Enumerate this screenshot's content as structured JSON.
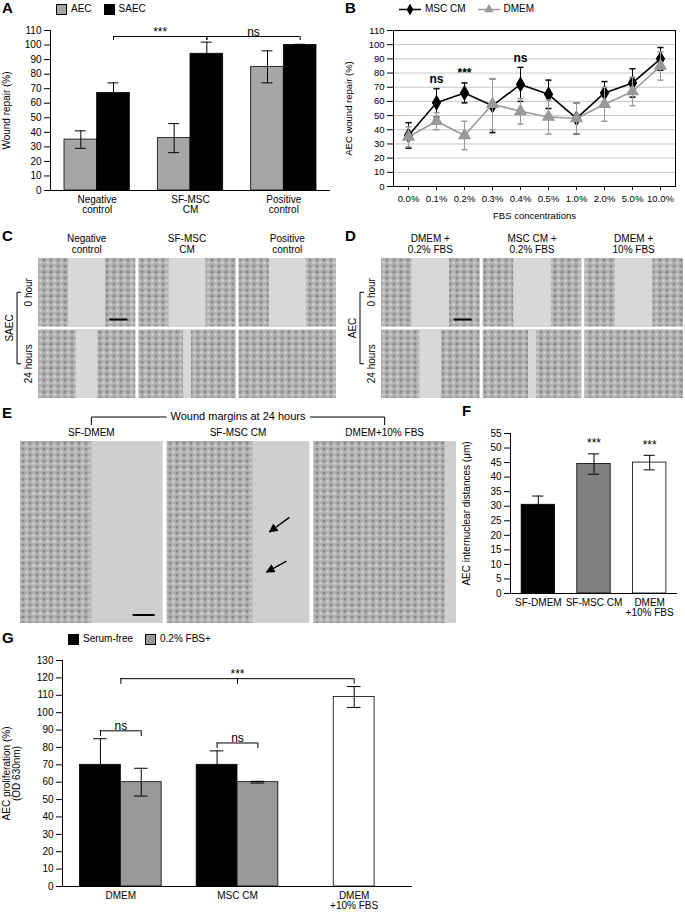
{
  "chart_data": [
    {
      "panel": "A",
      "type": "bar",
      "ylabel": "Wound repair (%)",
      "categories": [
        "Negative\ncontrol",
        "SF-MSC\nCM",
        "Positive\ncontrol"
      ],
      "series": [
        {
          "name": "AEC",
          "color": "#a6a6a6",
          "values": [
            35,
            36,
            85
          ],
          "errors": [
            6,
            10,
            11
          ]
        },
        {
          "name": "SAEC",
          "color": "#000000",
          "values": [
            67,
            94,
            100
          ],
          "errors": [
            7,
            8,
            0.5
          ]
        }
      ],
      "ylim": [
        0,
        110
      ],
      "yticks": [
        0,
        10,
        20,
        30,
        40,
        50,
        60,
        70,
        80,
        90,
        100,
        110
      ],
      "legend": "top-left",
      "annotations": [
        {
          "text": "***",
          "series": "SAEC",
          "categories": [
            "Negative\ncontrol",
            "SF-MSC\nCM"
          ]
        },
        {
          "text": "ns",
          "series": "SAEC",
          "categories": [
            "SF-MSC\nCM",
            "Positive\ncontrol"
          ]
        }
      ]
    },
    {
      "panel": "B",
      "type": "line",
      "xlabel": "FBS concentrations",
      "ylabel": "AEC wound repair (%)",
      "categories": [
        "0.0%",
        "0.1%",
        "0.2%",
        "0.3%",
        "0.4%",
        "0.5%",
        "1.0%",
        "2.0%",
        "5.0%",
        "10.0%"
      ],
      "series": [
        {
          "name": "MSC CM",
          "color": "#000000",
          "marker": "diamond",
          "values": [
            36,
            59,
            66,
            57,
            72,
            65,
            48,
            66,
            73,
            90
          ],
          "errors": [
            9,
            10,
            7,
            19,
            12,
            10,
            11,
            8,
            10,
            8
          ]
        },
        {
          "name": "DMEM",
          "color": "#999999",
          "marker": "triangle",
          "values": [
            35,
            46,
            36,
            58,
            53,
            49,
            48,
            58,
            67,
            85
          ],
          "errors": [
            7,
            6,
            10,
            18,
            9,
            12,
            11,
            12,
            10,
            10
          ]
        }
      ],
      "ylim": [
        0,
        110
      ],
      "yticks": [
        0,
        10,
        20,
        30,
        40,
        50,
        60,
        70,
        80,
        90,
        100,
        110
      ],
      "grid": true,
      "legend": "top-left",
      "annotations": [
        {
          "text": "ns",
          "categories": [
            "0.1%"
          ]
        },
        {
          "text": "***",
          "categories": [
            "0.2%"
          ]
        },
        {
          "text": "ns",
          "categories": [
            "0.4%"
          ]
        }
      ]
    },
    {
      "panel": "C",
      "type": "image",
      "side_label": "SAEC",
      "categories": [
        "Negative\ncontrol",
        "SF-MSC\nCM",
        "Positive\ncontrol"
      ],
      "rows": [
        "0 hour",
        "24 hours"
      ]
    },
    {
      "panel": "D",
      "type": "image",
      "side_label": "AEC",
      "categories": [
        "DMEM +\n0.2% FBS",
        "MSC CM +\n0.2% FBS",
        "DMEM +\n10% FBS"
      ],
      "rows": [
        "0 hour",
        "24 hours"
      ]
    },
    {
      "panel": "E",
      "type": "image",
      "title": "Wound margins at 24 hours",
      "categories": [
        "SF-DMEM",
        "SF-MSC CM",
        "DMEM+10% FBS"
      ]
    },
    {
      "panel": "F",
      "type": "bar",
      "ylabel": "AEC internuclear distances (μm)",
      "categories": [
        "SF-DMEM",
        "SF-MSC CM",
        "DMEM\n+10% FBS"
      ],
      "series": [
        {
          "colors": [
            "#000000",
            "#808080",
            "#ffffff"
          ],
          "values": [
            30.5,
            44.5,
            45
          ],
          "errors": [
            3,
            3.5,
            2.5
          ]
        }
      ],
      "ylim": [
        0,
        55
      ],
      "yticks": [
        0,
        5,
        10,
        15,
        20,
        25,
        30,
        35,
        40,
        45,
        50,
        55
      ],
      "annotations": [
        {
          "text": "***",
          "categories": [
            "SF-MSC CM"
          ]
        },
        {
          "text": "***",
          "categories": [
            "DMEM\n+10% FBS"
          ]
        }
      ]
    },
    {
      "panel": "G",
      "type": "bar",
      "ylabel": "AEC proliferation (%)\n(OD 630nm)",
      "categories": [
        "DMEM",
        "MSC CM",
        "DMEM\n+10% FBS"
      ],
      "series": [
        {
          "name": "Serum-free",
          "color": "#000000",
          "values": [
            70,
            70,
            null
          ],
          "errors": [
            15,
            8,
            null
          ]
        },
        {
          "name": "0.2% FBS+",
          "color": "#999999",
          "values": [
            60,
            60,
            null
          ],
          "errors": [
            8,
            0.5,
            null
          ]
        },
        {
          "color": "#ffffff",
          "values": [
            null,
            null,
            109
          ],
          "errors": [
            null,
            null,
            6
          ]
        }
      ],
      "ylim": [
        0,
        130
      ],
      "yticks": [
        0,
        10,
        20,
        30,
        40,
        50,
        60,
        70,
        80,
        90,
        100,
        110,
        120,
        130
      ],
      "legend": "top-left",
      "annotations": [
        {
          "text": "ns",
          "categories": [
            "DMEM"
          ]
        },
        {
          "text": "ns",
          "categories": [
            "MSC CM"
          ]
        },
        {
          "text": "***",
          "categories": [
            "DMEM",
            "MSC CM",
            "DMEM\n+10% FBS"
          ]
        }
      ]
    }
  ]
}
